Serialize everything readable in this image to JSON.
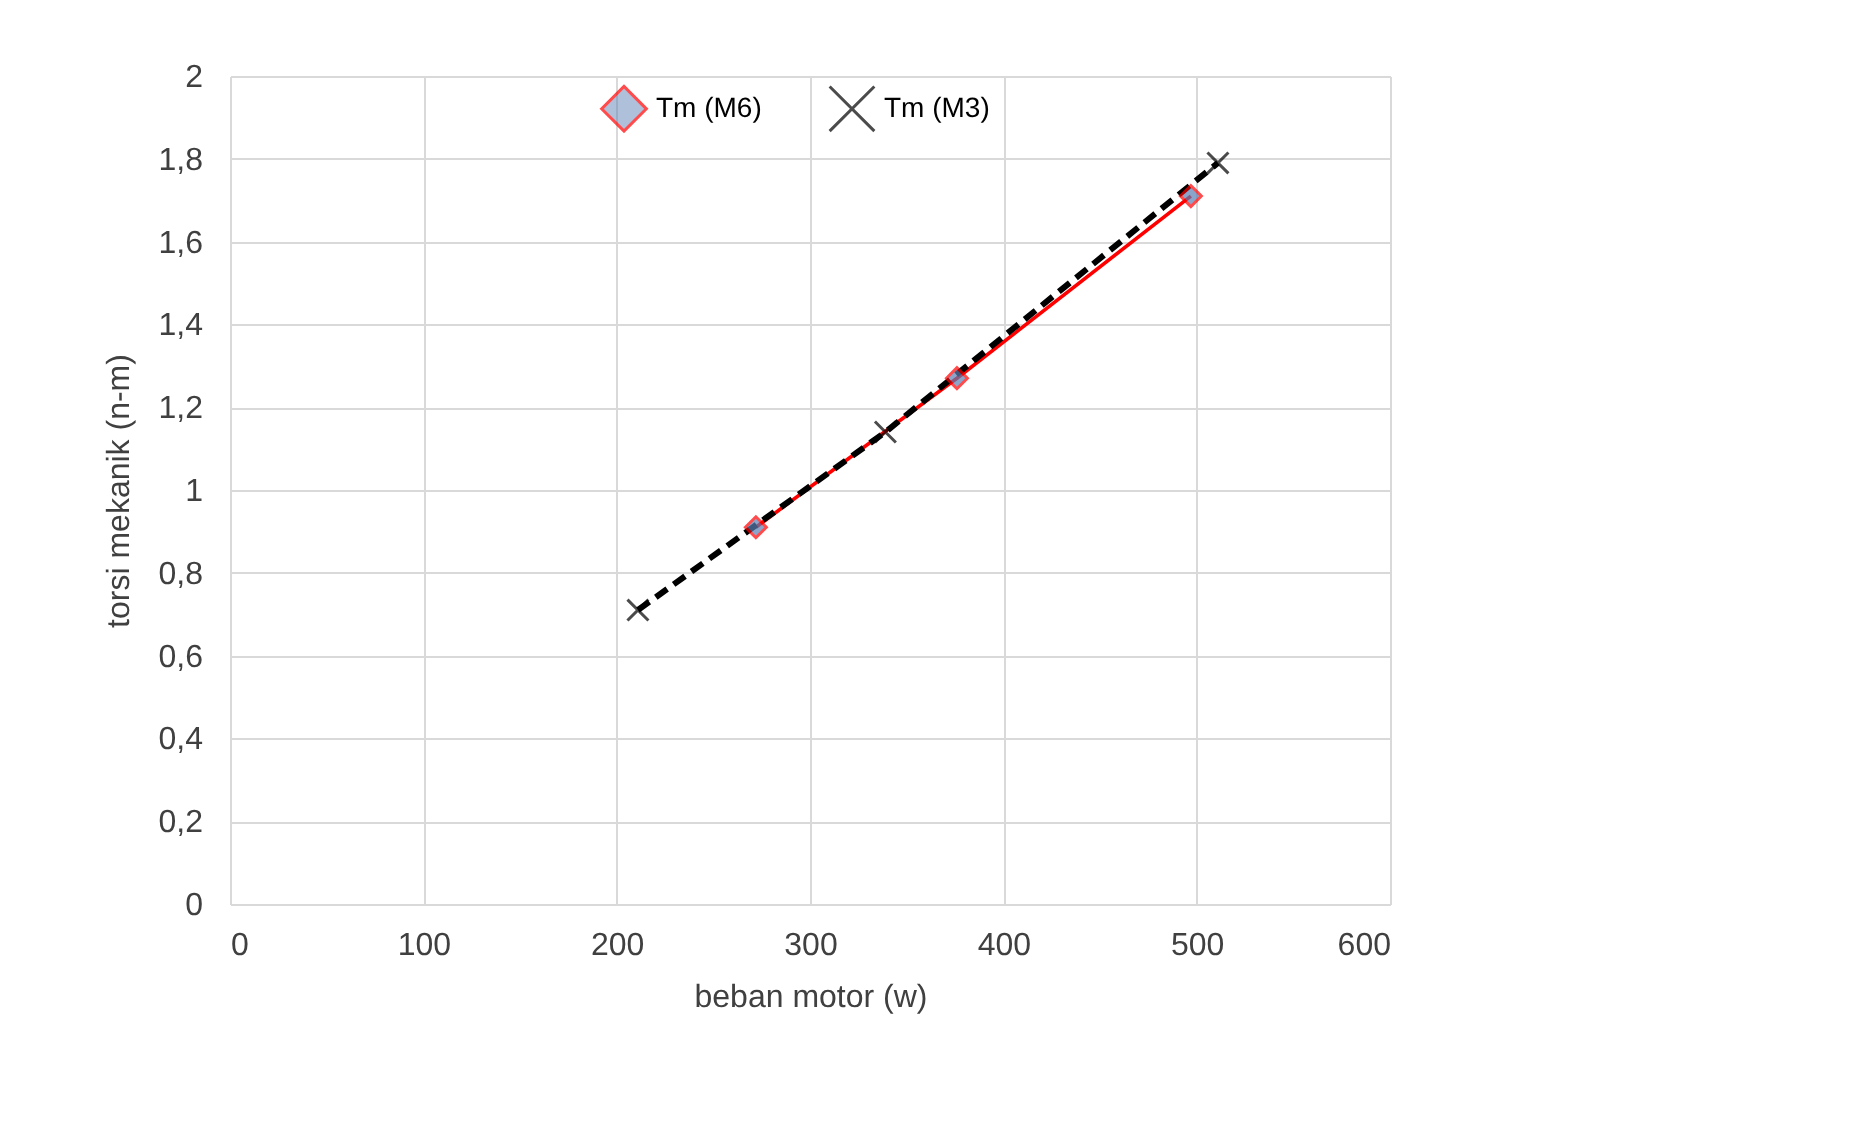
{
  "chart_data": {
    "type": "line",
    "xlabel": "beban motor (w)",
    "ylabel": "torsi mekanik (n-m)",
    "xlim": [
      0,
      600
    ],
    "xticks": [
      0,
      100,
      200,
      300,
      400,
      500,
      600
    ],
    "ylim": [
      0,
      2
    ],
    "yticks": [
      0,
      {
        "value": 0.2,
        "label": "0,2"
      },
      {
        "value": 0.4,
        "label": "0,4"
      },
      {
        "value": 0.6,
        "label": "0,6"
      },
      {
        "value": 0.8,
        "label": "0,8"
      },
      1,
      {
        "value": 1.2,
        "label": "1,2"
      },
      {
        "value": 1.4,
        "label": "1,4"
      },
      {
        "value": 1.6,
        "label": "1,6"
      },
      {
        "value": 1.8,
        "label": "1,8"
      },
      2
    ],
    "grid": true,
    "legend": "top",
    "series": [
      {
        "name": "Tm (M6)",
        "color": "#ff0000",
        "marker": "diamond",
        "line_style": "solid",
        "x": [
          272,
          376,
          497
        ],
        "values": [
          0.91,
          1.27,
          1.71
        ]
      },
      {
        "name": "Tm (M3)",
        "color": "#000000",
        "marker": "cross",
        "line_style": "dashed",
        "x": [
          211,
          339,
          511
        ],
        "values": [
          0.71,
          1.14,
          1.79
        ]
      }
    ]
  }
}
